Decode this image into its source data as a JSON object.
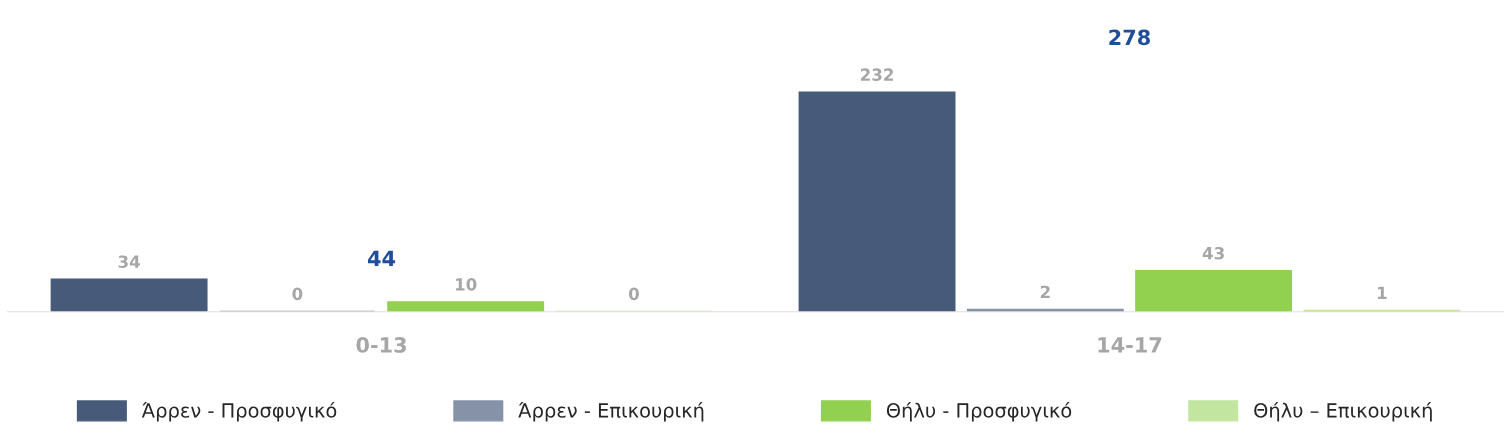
{
  "chart_data": {
    "type": "bar",
    "categories": [
      "0-13",
      "14-17"
    ],
    "series": [
      {
        "name": "Άρρεν - Προσφυγικό",
        "color": "#475a7a",
        "values": [
          34,
          232
        ]
      },
      {
        "name": "Άρρεν - Επικουρική",
        "color": "#8592a8",
        "values": [
          0,
          2
        ]
      },
      {
        "name": "Θήλυ - Προσφυγικό",
        "color": "#92d050",
        "values": [
          10,
          43
        ]
      },
      {
        "name": "Θήλυ – Επικουρική",
        "color": "#c2e5a0",
        "values": [
          0,
          1
        ]
      }
    ],
    "data_labels": true,
    "totals": [
      "44",
      "278"
    ],
    "legend": "bottom",
    "grid": false
  }
}
